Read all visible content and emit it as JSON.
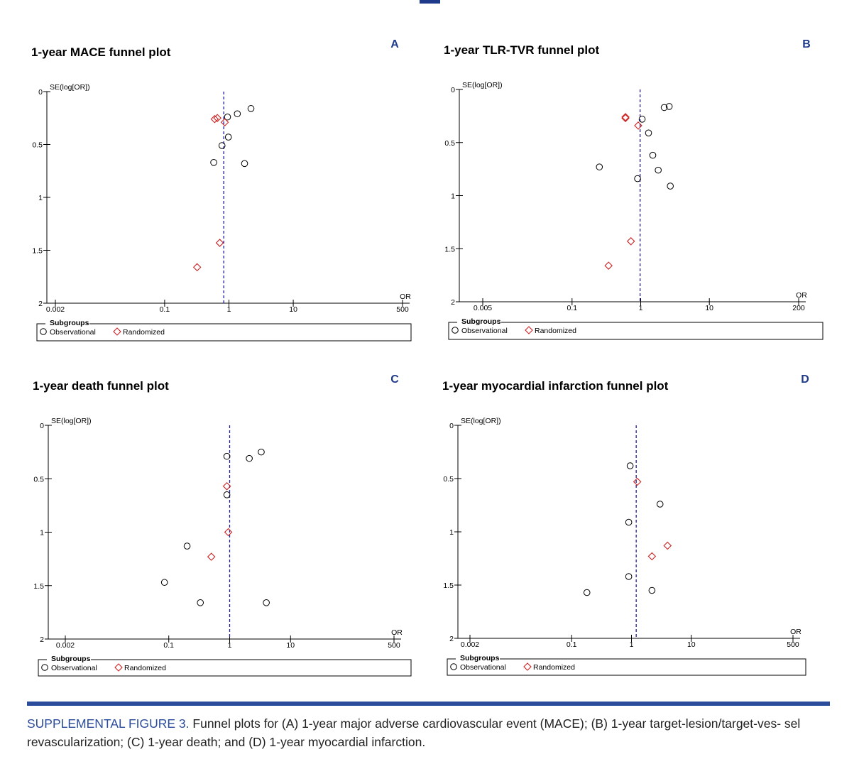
{
  "caption": {
    "label": "SUPPLEMENTAL FIGURE 3.",
    "text": " Funnel plots for (A) 1-year major adverse cardiovascular event (MACE); (B) 1-year target-lesion/target-ves- sel revascularization; (C) 1-year death; and (D) 1-year myocardial infarction."
  },
  "colors": {
    "observational": "#000000",
    "randomized": "#cc2222",
    "panel_letter": "#1f3a8a",
    "reference_line": "#1f1fa0",
    "rule": "#2b4c9b"
  },
  "chart_data": [
    {
      "panel": "A",
      "type": "scatter",
      "title": "1-year MACE funnel plot",
      "ylabel": "SE(log[OR])",
      "xlabel": "OR",
      "x_scale": "log",
      "xlim": [
        0.002,
        500
      ],
      "x_ticks": [
        "0.002",
        "0.1",
        "1",
        "10",
        "500"
      ],
      "ylim": [
        0,
        2
      ],
      "y_reversed": true,
      "y_ticks": [
        "0",
        "0.5",
        "1",
        "1.5",
        "2"
      ],
      "reference_or": 0.83,
      "legend": {
        "title": "Subgroups",
        "items": [
          "Observational",
          "Randomized"
        ],
        "position": "bottom"
      },
      "series": [
        {
          "name": "Observational",
          "marker": "circle",
          "points": [
            [
              2.2,
              0.16
            ],
            [
              1.35,
              0.21
            ],
            [
              0.95,
              0.24
            ],
            [
              0.98,
              0.43
            ],
            [
              0.78,
              0.51
            ],
            [
              0.58,
              0.67
            ],
            [
              1.75,
              0.68
            ]
          ]
        },
        {
          "name": "Randomized",
          "marker": "diamond",
          "points": [
            [
              0.6,
              0.26
            ],
            [
              0.66,
              0.25
            ],
            [
              0.86,
              0.29
            ],
            [
              0.72,
              1.43
            ],
            [
              0.32,
              1.66
            ]
          ]
        }
      ]
    },
    {
      "panel": "B",
      "type": "scatter",
      "title": "1-year TLR-TVR funnel plot",
      "ylabel": "SE(log[OR])",
      "xlabel": "OR",
      "x_scale": "log",
      "xlim": [
        0.005,
        200
      ],
      "x_ticks": [
        "0.005",
        "0.1",
        "1",
        "10",
        "200"
      ],
      "ylim": [
        0,
        2
      ],
      "y_reversed": true,
      "y_ticks": [
        "0",
        "0.5",
        "1",
        "1.5",
        "2"
      ],
      "reference_or": 0.98,
      "legend": {
        "title": "Subgroups",
        "items": [
          "Observational",
          "Randomized"
        ],
        "position": "bottom"
      },
      "series": [
        {
          "name": "Observational",
          "marker": "circle",
          "points": [
            [
              2.2,
              0.17
            ],
            [
              2.6,
              0.16
            ],
            [
              1.05,
              0.28
            ],
            [
              1.3,
              0.41
            ],
            [
              1.5,
              0.62
            ],
            [
              1.8,
              0.76
            ],
            [
              0.25,
              0.73
            ],
            [
              0.9,
              0.84
            ],
            [
              2.7,
              0.91
            ]
          ]
        },
        {
          "name": "Randomized",
          "marker": "diamond",
          "points": [
            [
              0.6,
              0.27
            ],
            [
              0.6,
              0.26
            ],
            [
              0.92,
              0.34
            ],
            [
              0.72,
              1.43
            ],
            [
              0.34,
              1.66
            ]
          ]
        }
      ]
    },
    {
      "panel": "C",
      "type": "scatter",
      "title": "1-year death funnel plot",
      "ylabel": "SE(log[OR])",
      "xlabel": "OR",
      "x_scale": "log",
      "xlim": [
        0.002,
        500
      ],
      "x_ticks": [
        "0.002",
        "0.1",
        "1",
        "10",
        "500"
      ],
      "ylim": [
        0,
        2
      ],
      "y_reversed": true,
      "y_ticks": [
        "0",
        "0.5",
        "1",
        "1.5",
        "2"
      ],
      "reference_or": 1.0,
      "legend": {
        "title": "Subgroups",
        "items": [
          "Observational",
          "Randomized"
        ],
        "position": "bottom"
      },
      "series": [
        {
          "name": "Observational",
          "marker": "circle",
          "points": [
            [
              3.3,
              0.25
            ],
            [
              2.1,
              0.31
            ],
            [
              0.9,
              0.29
            ],
            [
              0.9,
              0.65
            ],
            [
              0.2,
              1.13
            ],
            [
              0.085,
              1.47
            ],
            [
              0.33,
              1.66
            ],
            [
              4.0,
              1.66
            ]
          ]
        },
        {
          "name": "Randomized",
          "marker": "diamond",
          "points": [
            [
              0.9,
              0.57
            ],
            [
              0.95,
              1.0
            ],
            [
              0.5,
              1.23
            ]
          ]
        }
      ]
    },
    {
      "panel": "D",
      "type": "scatter",
      "title": "1-year myocardial infarction funnel plot",
      "ylabel": "SE(log[OR])",
      "xlabel": "OR",
      "x_scale": "log",
      "xlim": [
        0.002,
        500
      ],
      "x_ticks": [
        "0.002",
        "0.1",
        "1",
        "10",
        "500"
      ],
      "ylim": [
        0,
        2
      ],
      "y_reversed": true,
      "y_ticks": [
        "0",
        "0.5",
        "1",
        "1.5",
        "2"
      ],
      "reference_or": 1.2,
      "legend": {
        "title": "Subgroups",
        "items": [
          "Observational",
          "Randomized"
        ],
        "position": "bottom"
      },
      "series": [
        {
          "name": "Observational",
          "marker": "circle",
          "points": [
            [
              0.95,
              0.38
            ],
            [
              3.0,
              0.74
            ],
            [
              0.9,
              0.91
            ],
            [
              0.9,
              1.42
            ],
            [
              2.2,
              1.55
            ],
            [
              0.18,
              1.57
            ]
          ]
        },
        {
          "name": "Randomized",
          "marker": "diamond",
          "points": [
            [
              1.25,
              0.53
            ],
            [
              4.0,
              1.13
            ],
            [
              2.2,
              1.23
            ]
          ]
        }
      ]
    }
  ]
}
